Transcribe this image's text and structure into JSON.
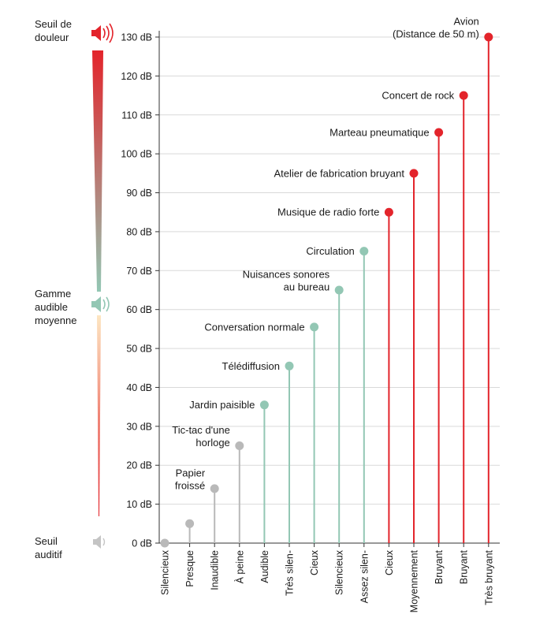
{
  "side_labels": {
    "top": "Seuil de\ndouleur",
    "middle": "Gamme\naudible\nmoyenne",
    "bottom": "Seuil\nauditif"
  },
  "icons": {
    "top": "speaker-loud-icon",
    "middle": "speaker-medium-icon",
    "bottom": "speaker-mute-icon"
  },
  "colors": {
    "quiet": "#b9b9b9",
    "moderate": "#93c7b4",
    "loud": "#e3242b",
    "axis": "#333333",
    "grid": "#d9d9d9",
    "gradient_top": "#e3242b",
    "gradient_mid": "#93c7b4",
    "gradient_mid_low": "#fde6c2",
    "gradient_bottom": "#e3242b"
  },
  "chart_data": {
    "type": "lollipop",
    "ylim": [
      0,
      130
    ],
    "yticks": [
      "0 dB",
      "10 dB",
      "20 dB",
      "30 dB",
      "40 dB",
      "50 dB",
      "60 dB",
      "70 dB",
      "80 dB",
      "90 dB",
      "100 dB",
      "110 dB",
      "120 dB",
      "130 dB"
    ],
    "categories": [
      "Silencieux",
      "Presque",
      "Inaudible",
      "À peine",
      "Audible",
      "Très silen-",
      "Cieux",
      "Silencieux",
      "Assez silen-",
      "Cieux",
      "Moyennement",
      "Bruyant",
      "Bruyant",
      "Très bruyant"
    ],
    "values": [
      0,
      5,
      14,
      25,
      35.5,
      45.5,
      55.5,
      65,
      75,
      85,
      95,
      105.5,
      115,
      130
    ],
    "groups": [
      "quiet",
      "quiet",
      "quiet",
      "quiet",
      "moderate",
      "moderate",
      "moderate",
      "moderate",
      "moderate",
      "loud",
      "loud",
      "loud",
      "loud",
      "loud"
    ],
    "labels": [
      [],
      [],
      [
        "Papier",
        "froissé"
      ],
      [
        "Tic-tac d'une",
        "horloge"
      ],
      [
        "Jardin paisible"
      ],
      [
        "Télédiffusion"
      ],
      [
        "Conversation normale"
      ],
      [
        "Nuisances sonores",
        "au bureau"
      ],
      [
        "Circulation"
      ],
      [
        "Musique de radio forte"
      ],
      [
        "Atelier de fabrication bruyant"
      ],
      [
        "Marteau pneumatique"
      ],
      [
        "Concert de rock"
      ],
      [
        "Avion",
        "(Distance de 50 m)"
      ]
    ]
  }
}
